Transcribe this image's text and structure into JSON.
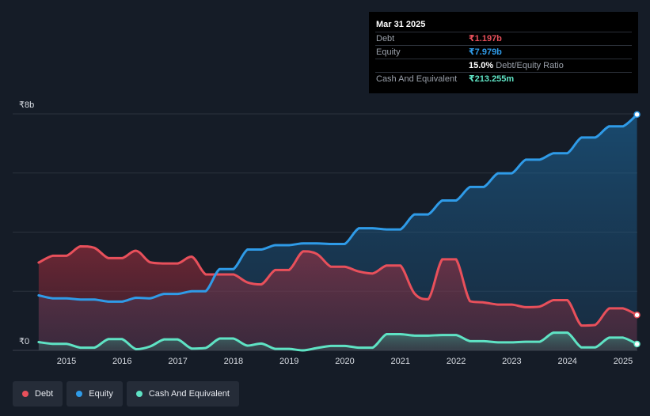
{
  "tooltip": {
    "date": "Mar 31 2025",
    "rows": [
      {
        "label": "Debt",
        "value": "₹1.197b"
      },
      {
        "label": "Equity",
        "value": "₹7.979b"
      },
      {
        "label": "",
        "value": "15.0%",
        "suffix": "Debt/Equity Ratio"
      },
      {
        "label": "Cash And Equivalent",
        "value": "₹213.255m"
      }
    ]
  },
  "legend": [
    {
      "label": "Debt",
      "color": "#e8505b"
    },
    {
      "label": "Equity",
      "color": "#2f9be8"
    },
    {
      "label": "Cash And Equivalent",
      "color": "#5fe3c4"
    }
  ],
  "chart_data": {
    "type": "area",
    "title": "",
    "xlabel": "",
    "ylabel": "",
    "y_unit": "₹ billions",
    "ylim": [
      0,
      8
    ],
    "xlim": [
      2014.5,
      2025.25
    ],
    "y_tick_labels": [
      {
        "value": 8,
        "label": "₹8b"
      },
      {
        "value": 0,
        "label": "₹0"
      }
    ],
    "gridlines_y": [
      0,
      2,
      4,
      6,
      8
    ],
    "x_ticks": [
      2015,
      2016,
      2017,
      2018,
      2019,
      2020,
      2021,
      2022,
      2023,
      2024,
      2025
    ],
    "x_tick_labels": [
      "2015",
      "2016",
      "2017",
      "2018",
      "2019",
      "2020",
      "2021",
      "2022",
      "2023",
      "2024",
      "2025"
    ],
    "series": [
      {
        "name": "Debt",
        "color": "#e8505b",
        "x": [
          2014.5,
          2014.75,
          2015.0,
          2015.25,
          2015.5,
          2015.75,
          2016.0,
          2016.25,
          2016.5,
          2016.75,
          2017.0,
          2017.25,
          2017.5,
          2017.75,
          2018.0,
          2018.25,
          2018.5,
          2018.75,
          2019.0,
          2019.25,
          2019.5,
          2019.75,
          2020.0,
          2020.25,
          2020.5,
          2020.75,
          2021.0,
          2021.25,
          2021.5,
          2021.75,
          2022.0,
          2022.25,
          2022.5,
          2022.75,
          2023.0,
          2023.25,
          2023.5,
          2023.75,
          2024.0,
          2024.25,
          2024.5,
          2024.75,
          2025.0,
          2025.25
        ],
        "values": [
          2.97,
          3.2,
          3.2,
          3.52,
          3.47,
          3.12,
          3.12,
          3.37,
          2.98,
          2.94,
          2.94,
          3.17,
          2.57,
          2.57,
          2.57,
          2.3,
          2.23,
          2.72,
          2.72,
          3.35,
          3.26,
          2.83,
          2.83,
          2.67,
          2.6,
          2.87,
          2.87,
          1.93,
          1.73,
          3.08,
          3.08,
          1.66,
          1.62,
          1.55,
          1.55,
          1.46,
          1.48,
          1.7,
          1.7,
          0.84,
          0.86,
          1.42,
          1.42,
          1.197
        ]
      },
      {
        "name": "Equity",
        "color": "#2f9be8",
        "x": [
          2014.5,
          2014.75,
          2015.0,
          2015.25,
          2015.5,
          2015.75,
          2016.0,
          2016.25,
          2016.5,
          2016.75,
          2017.0,
          2017.25,
          2017.5,
          2017.75,
          2018.0,
          2018.25,
          2018.5,
          2018.75,
          2019.0,
          2019.25,
          2019.5,
          2019.75,
          2020.0,
          2020.25,
          2020.5,
          2020.75,
          2021.0,
          2021.25,
          2021.5,
          2021.75,
          2022.0,
          2022.25,
          2022.5,
          2022.75,
          2023.0,
          2023.25,
          2023.5,
          2023.75,
          2024.0,
          2024.25,
          2024.5,
          2024.75,
          2025.0,
          2025.25
        ],
        "values": [
          1.86,
          1.76,
          1.76,
          1.72,
          1.72,
          1.65,
          1.65,
          1.78,
          1.76,
          1.91,
          1.91,
          2.0,
          2.0,
          2.75,
          2.75,
          3.41,
          3.41,
          3.56,
          3.56,
          3.62,
          3.62,
          3.6,
          3.6,
          4.13,
          4.13,
          4.09,
          4.09,
          4.6,
          4.6,
          5.07,
          5.07,
          5.53,
          5.53,
          5.99,
          5.99,
          6.45,
          6.45,
          6.67,
          6.67,
          7.2,
          7.2,
          7.58,
          7.58,
          7.979
        ]
      },
      {
        "name": "Cash And Equivalent",
        "color": "#5fe3c4",
        "x": [
          2014.5,
          2014.75,
          2015.0,
          2015.25,
          2015.5,
          2015.75,
          2016.0,
          2016.25,
          2016.5,
          2016.75,
          2017.0,
          2017.25,
          2017.5,
          2017.75,
          2018.0,
          2018.25,
          2018.5,
          2018.75,
          2019.0,
          2019.25,
          2019.5,
          2019.75,
          2020.0,
          2020.25,
          2020.5,
          2020.75,
          2021.0,
          2021.25,
          2021.5,
          2021.75,
          2022.0,
          2022.25,
          2022.5,
          2022.75,
          2023.0,
          2023.25,
          2023.5,
          2023.75,
          2024.0,
          2024.25,
          2024.5,
          2024.75,
          2025.0,
          2025.25
        ],
        "values": [
          0.28,
          0.22,
          0.22,
          0.09,
          0.09,
          0.38,
          0.38,
          0.04,
          0.13,
          0.37,
          0.37,
          0.06,
          0.08,
          0.4,
          0.4,
          0.16,
          0.23,
          0.05,
          0.05,
          0.0,
          0.08,
          0.15,
          0.15,
          0.09,
          0.09,
          0.55,
          0.55,
          0.5,
          0.5,
          0.52,
          0.52,
          0.31,
          0.31,
          0.27,
          0.27,
          0.29,
          0.29,
          0.6,
          0.6,
          0.1,
          0.1,
          0.43,
          0.43,
          0.213
        ]
      }
    ]
  }
}
